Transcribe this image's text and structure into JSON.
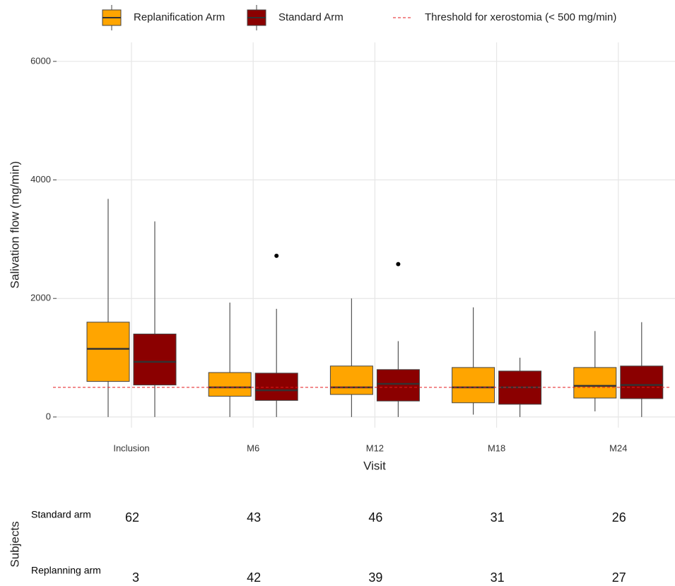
{
  "chart_data": {
    "type": "box",
    "x_label": "Visit",
    "y_label": "Salivation flow (mg/min)",
    "categories": [
      "Inclusion",
      "M6",
      "M12",
      "M18",
      "M24"
    ],
    "ylim": [
      -180,
      6320
    ],
    "yticks": [
      0,
      2000,
      4000,
      6000
    ],
    "grid": true,
    "legend": "top",
    "series": [
      {
        "name": "Replanification Arm",
        "color": "#ffa500",
        "boxes": [
          {
            "whislo": 0,
            "q1": 600,
            "med": 1150,
            "q3": 1600,
            "whishi": 3680,
            "fliers": []
          },
          {
            "whislo": 0,
            "q1": 350,
            "med": 500,
            "q3": 750,
            "whishi": 1930,
            "fliers": []
          },
          {
            "whislo": 0,
            "q1": 380,
            "med": 500,
            "q3": 860,
            "whishi": 2000,
            "fliers": []
          },
          {
            "whislo": 40,
            "q1": 240,
            "med": 500,
            "q3": 835,
            "whishi": 1850,
            "fliers": []
          },
          {
            "whislo": 95,
            "q1": 320,
            "med": 525,
            "q3": 835,
            "whishi": 1450,
            "fliers": []
          }
        ]
      },
      {
        "name": "Standard Arm",
        "color": "#8b0000",
        "boxes": [
          {
            "whislo": 0,
            "q1": 540,
            "med": 930,
            "q3": 1400,
            "whishi": 3300,
            "fliers": []
          },
          {
            "whislo": 0,
            "q1": 280,
            "med": 450,
            "q3": 740,
            "whishi": 1825,
            "fliers": [
              2720
            ]
          },
          {
            "whislo": 0,
            "q1": 270,
            "med": 560,
            "q3": 800,
            "whishi": 1280,
            "fliers": [
              2580
            ]
          },
          {
            "whislo": 0,
            "q1": 215,
            "med": 500,
            "q3": 775,
            "whishi": 1000,
            "fliers": []
          },
          {
            "whislo": 0,
            "q1": 310,
            "med": 540,
            "q3": 860,
            "whishi": 1600,
            "fliers": []
          }
        ]
      }
    ],
    "threshold": {
      "label": "Threshold for xerostomia (< 500 mg/min)",
      "value": 500,
      "color": "#e41a1c"
    }
  },
  "risk_table": {
    "title": "Subjects",
    "rows": [
      {
        "label": "Standard arm",
        "counts": [
          62,
          43,
          46,
          31,
          26
        ]
      },
      {
        "label": "Replanning arm",
        "counts": [
          3,
          42,
          39,
          31,
          27
        ]
      }
    ]
  }
}
